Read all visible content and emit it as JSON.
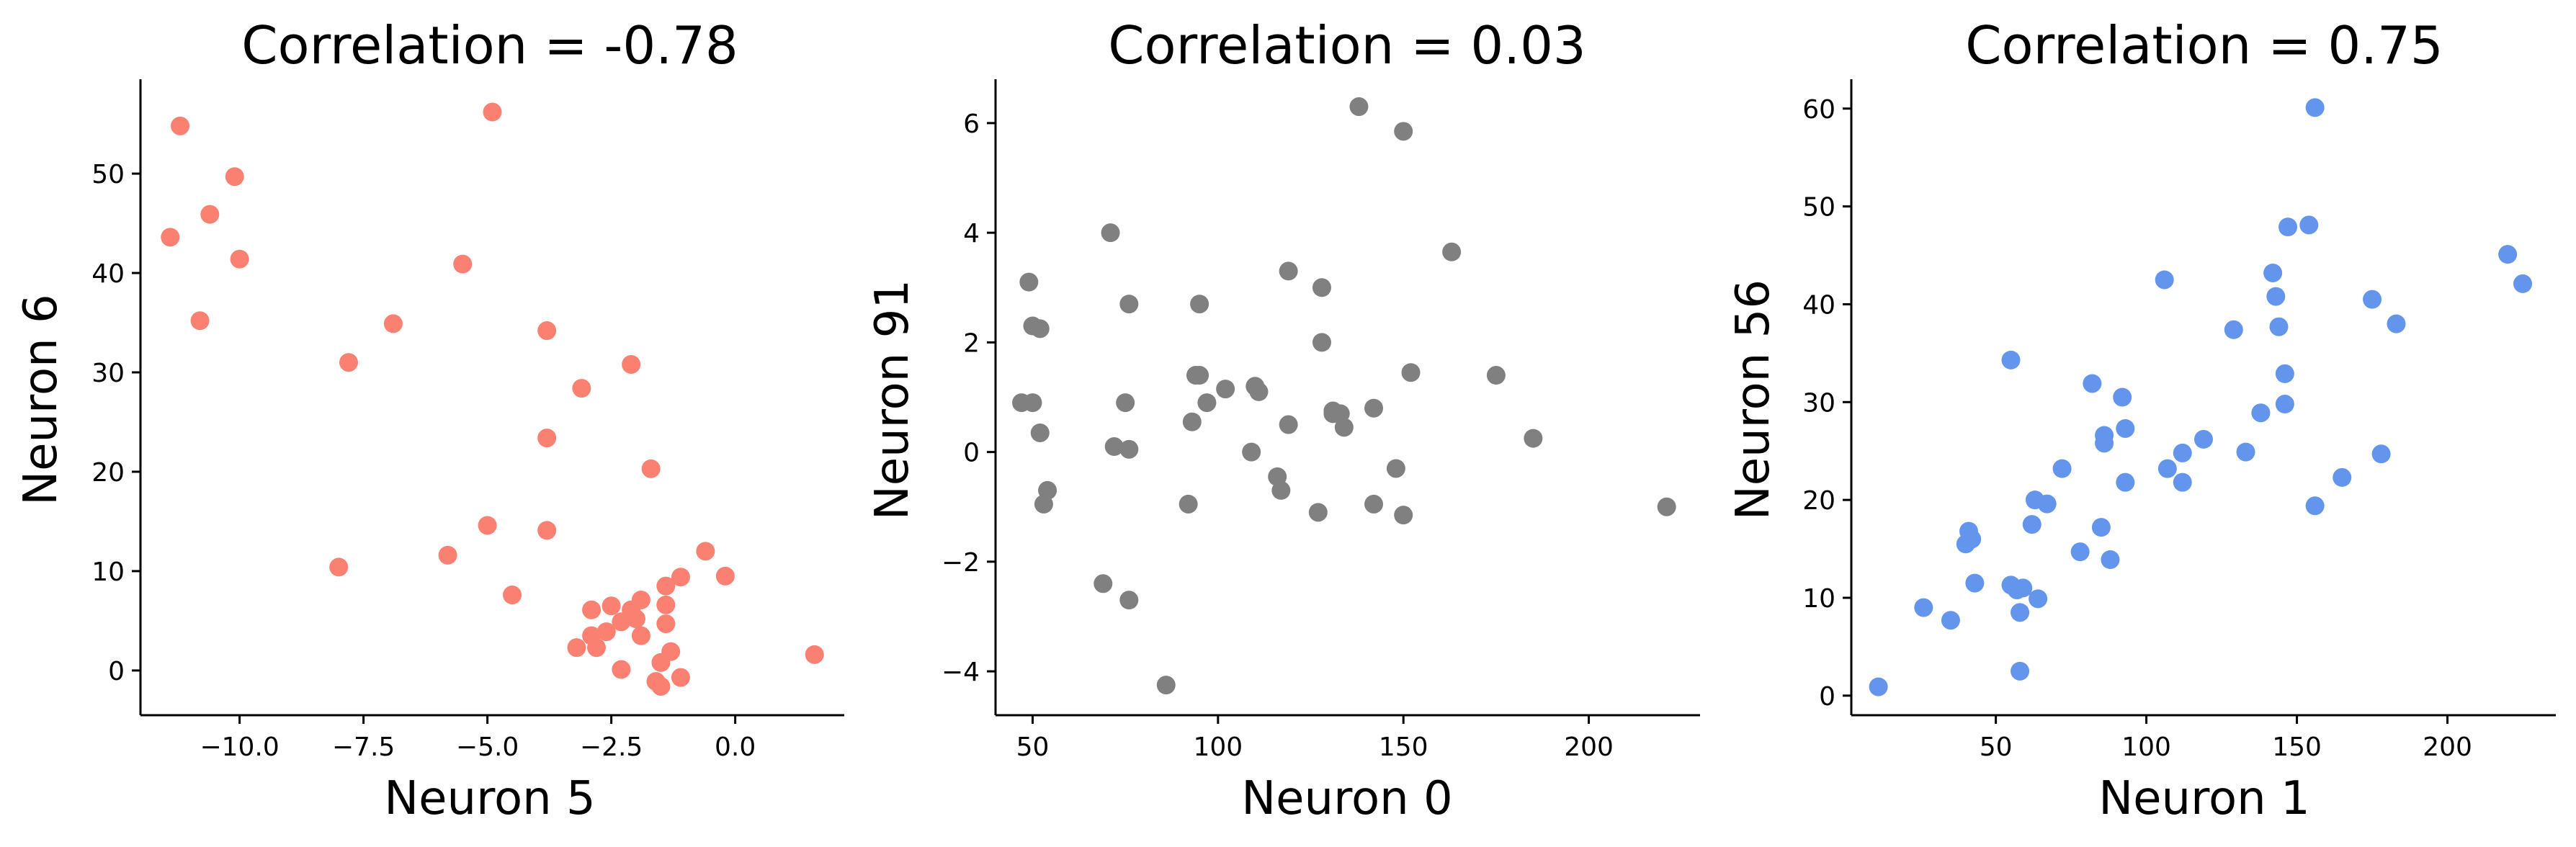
{
  "figure": {
    "background": "#ffffff"
  },
  "chart_data": [
    {
      "type": "scatter",
      "title": "Correlation = -0.78",
      "xlabel": "Neuron 5",
      "ylabel": "Neuron 6",
      "xlim": [
        -12.0,
        2.2
      ],
      "ylim": [
        -4.5,
        59.5
      ],
      "xticks": [
        -10.0,
        -7.5,
        -5.0,
        -2.5,
        0.0
      ],
      "xtick_labels": [
        "−10.0",
        "−7.5",
        "−5.0",
        "−2.5",
        "0.0"
      ],
      "yticks": [
        0,
        10,
        20,
        30,
        40,
        50
      ],
      "ytick_labels": [
        "0",
        "10",
        "20",
        "30",
        "40",
        "50"
      ],
      "grid": false,
      "color": "#fa8072",
      "x": [
        -11.2,
        -11.4,
        -10.1,
        -10.6,
        -10.0,
        -10.8,
        -4.9,
        -5.5,
        -6.9,
        -7.8,
        -3.8,
        -3.1,
        -2.1,
        -3.8,
        -1.7,
        -5.0,
        -3.8,
        -8.0,
        -5.8,
        -4.5,
        -0.6,
        -0.2,
        1.6,
        -1.4,
        -1.1,
        -1.4,
        -1.9,
        -2.1,
        -2.5,
        -2.9,
        -2.0,
        -2.3,
        -1.9,
        -1.4,
        -2.6,
        -2.9,
        -3.2,
        -2.8,
        -1.3,
        -2.3,
        -1.5,
        -1.1,
        -1.6,
        -1.5
      ],
      "y": [
        54.8,
        43.6,
        49.7,
        45.9,
        41.4,
        35.2,
        56.2,
        40.9,
        34.9,
        31.0,
        34.2,
        28.4,
        30.8,
        23.4,
        20.3,
        14.6,
        14.1,
        10.4,
        11.6,
        7.6,
        12.0,
        9.5,
        1.6,
        8.5,
        9.4,
        6.6,
        7.1,
        6.1,
        6.5,
        6.1,
        5.2,
        4.9,
        3.5,
        4.7,
        3.9,
        3.5,
        2.3,
        2.3,
        1.9,
        0.1,
        0.8,
        -0.7,
        -1.1,
        -1.6
      ]
    },
    {
      "type": "scatter",
      "title": "Correlation = 0.03",
      "xlabel": "Neuron 0",
      "ylabel": "Neuron 91",
      "xlim": [
        40,
        230
      ],
      "ylim": [
        -4.8,
        6.8
      ],
      "xticks": [
        50,
        100,
        150,
        200
      ],
      "xtick_labels": [
        "50",
        "100",
        "150",
        "200"
      ],
      "yticks": [
        -4,
        -2,
        0,
        2,
        4,
        6
      ],
      "ytick_labels": [
        "−4",
        "−2",
        "0",
        "2",
        "4",
        "6"
      ],
      "grid": false,
      "color": "#808080",
      "x": [
        49,
        50,
        52,
        47,
        50,
        52,
        54,
        53,
        71,
        76,
        75,
        72,
        76,
        69,
        76,
        86,
        95,
        94,
        97,
        95,
        102,
        110,
        111,
        109,
        93,
        92,
        119,
        119,
        116,
        117,
        128,
        128,
        131,
        133,
        131,
        134,
        127,
        138,
        150,
        142,
        163,
        152,
        148,
        142,
        150,
        175,
        185,
        221
      ],
      "y": [
        3.1,
        2.3,
        2.25,
        0.9,
        0.9,
        0.35,
        -0.7,
        -0.95,
        4.0,
        2.7,
        0.9,
        0.1,
        0.05,
        -2.4,
        -2.7,
        -4.25,
        2.7,
        1.4,
        0.9,
        1.4,
        1.15,
        1.2,
        1.1,
        0.0,
        0.55,
        -0.95,
        3.3,
        0.5,
        -0.45,
        -0.7,
        3.0,
        2.0,
        0.75,
        0.7,
        0.7,
        0.45,
        -1.1,
        6.3,
        5.85,
        0.8,
        3.65,
        1.45,
        -0.3,
        -0.95,
        -1.15,
        1.4,
        0.25,
        -1.0
      ]
    },
    {
      "type": "scatter",
      "title": "Correlation = 0.75",
      "xlabel": "Neuron 1",
      "ylabel": "Neuron 56",
      "xlim": [
        2,
        236
      ],
      "ylim": [
        -2.0,
        63.0
      ],
      "xticks": [
        50,
        100,
        150,
        200
      ],
      "xtick_labels": [
        "50",
        "100",
        "150",
        "200"
      ],
      "yticks": [
        0,
        10,
        20,
        30,
        40,
        50,
        60
      ],
      "ytick_labels": [
        "0",
        "10",
        "20",
        "30",
        "40",
        "50",
        "60"
      ],
      "grid": false,
      "color": "#6495ed",
      "x": [
        11,
        26,
        35,
        40,
        41,
        42,
        43,
        55,
        55,
        57,
        58,
        58,
        59,
        62,
        63,
        64,
        67,
        72,
        78,
        82,
        85,
        86,
        86,
        88,
        92,
        93,
        93,
        106,
        107,
        112,
        112,
        119,
        129,
        133,
        138,
        142,
        143,
        144,
        146,
        146,
        147,
        154,
        156,
        156,
        165,
        175,
        178,
        183,
        220,
        225
      ],
      "y": [
        0.9,
        9.0,
        7.7,
        15.5,
        16.8,
        16.0,
        11.5,
        34.3,
        11.3,
        10.8,
        8.5,
        2.5,
        11.0,
        17.5,
        20.0,
        9.9,
        19.6,
        23.2,
        14.7,
        31.9,
        17.2,
        26.6,
        25.8,
        13.9,
        30.5,
        27.3,
        21.8,
        42.5,
        23.2,
        24.8,
        21.8,
        26.2,
        37.4,
        24.9,
        28.9,
        43.2,
        40.8,
        37.7,
        29.8,
        32.9,
        47.9,
        48.1,
        60.1,
        19.4,
        22.3,
        40.5,
        24.7,
        38.0,
        45.1,
        42.1
      ]
    }
  ]
}
